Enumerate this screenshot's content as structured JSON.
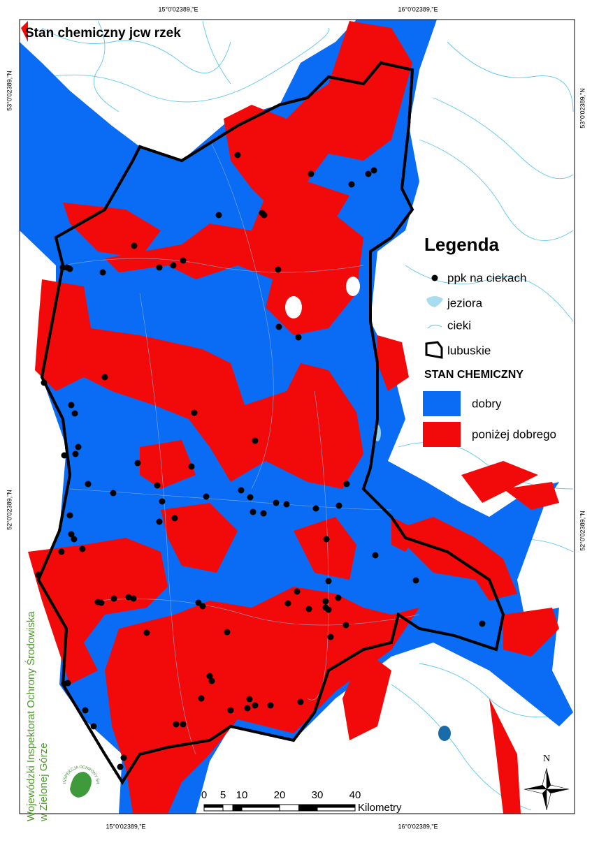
{
  "title": "Stan chemiczny jcw rzek",
  "coordinates": {
    "top": [
      "15°0'02389,\"E",
      "16°0'02389,\"E"
    ],
    "bottom": [
      "15°0'02389,\"E",
      "16°0'02389,\"E"
    ],
    "left": [
      "53°0'02389,\"N",
      "52°0'02389,\"N"
    ],
    "right": [
      "53°0'02389,\"N",
      "52°0'02389,\"N"
    ]
  },
  "legend": {
    "title": "Legenda",
    "items": [
      "ppk na ciekach",
      "jeziora",
      "cieki",
      "lubuskie"
    ],
    "section_title": "STAN CHEMICZNY",
    "classes": [
      {
        "label": "dobry",
        "color": "#0a6cf5"
      },
      {
        "label": "poniżej dobrego",
        "color": "#f20a0a"
      }
    ]
  },
  "scale_bar": {
    "ticks": [
      0,
      5,
      10,
      20,
      30,
      40
    ],
    "unit": "Kilometry"
  },
  "north": "N",
  "publisher": {
    "lines": [
      "Wojewódzki Inspektorat Ochrony Środowiska",
      "w Zielonej Górze"
    ],
    "logo": "INSPEKCJA OCHRONY ŚRODOWISKA"
  }
}
